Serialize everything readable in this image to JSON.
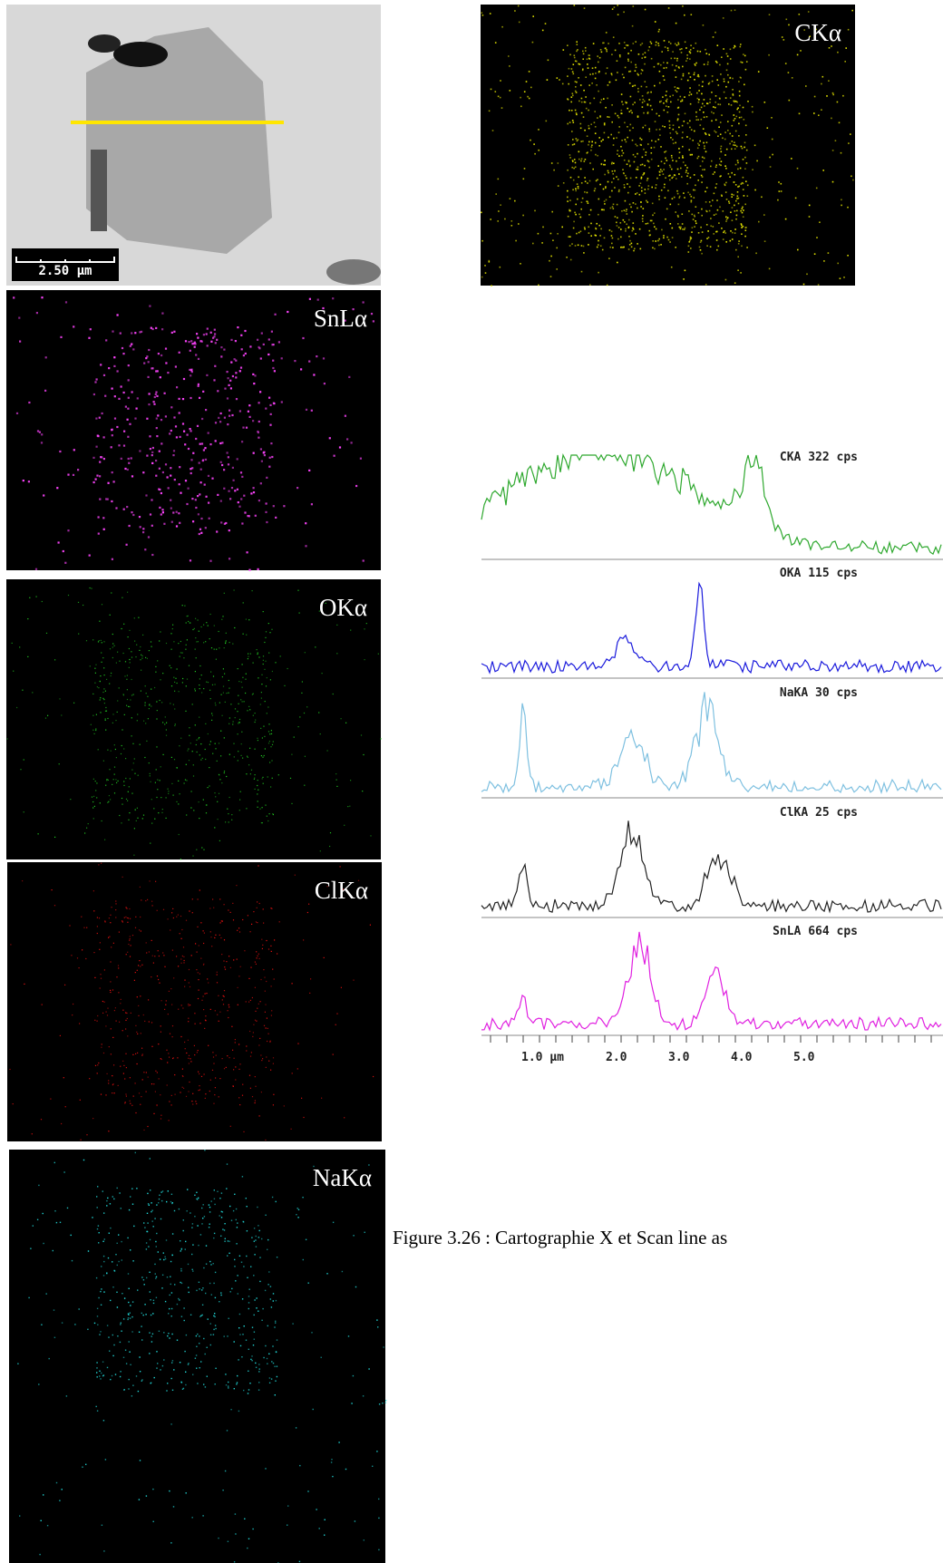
{
  "sem_image": {
    "scale_bar": "2.50 µm"
  },
  "maps": [
    {
      "label": "CKα"
    },
    {
      "label": "SnLα"
    },
    {
      "label": "OKα"
    },
    {
      "label": "ClKα"
    },
    {
      "label": "NaKα"
    }
  ],
  "line_scan": {
    "traces": [
      {
        "label": "CKA 322 cps"
      },
      {
        "label": "OKA 115 cps"
      },
      {
        "label": "NaKA 30 cps"
      },
      {
        "label": "ClKA 25 cps"
      },
      {
        "label": "SnLA 664 cps"
      }
    ],
    "axis_labels": [
      "1.0 µm",
      "2.0",
      "3.0",
      "4.0",
      "5.0"
    ]
  },
  "caption": "Figure 3.26 : Cartographie X et Scan line as"
}
